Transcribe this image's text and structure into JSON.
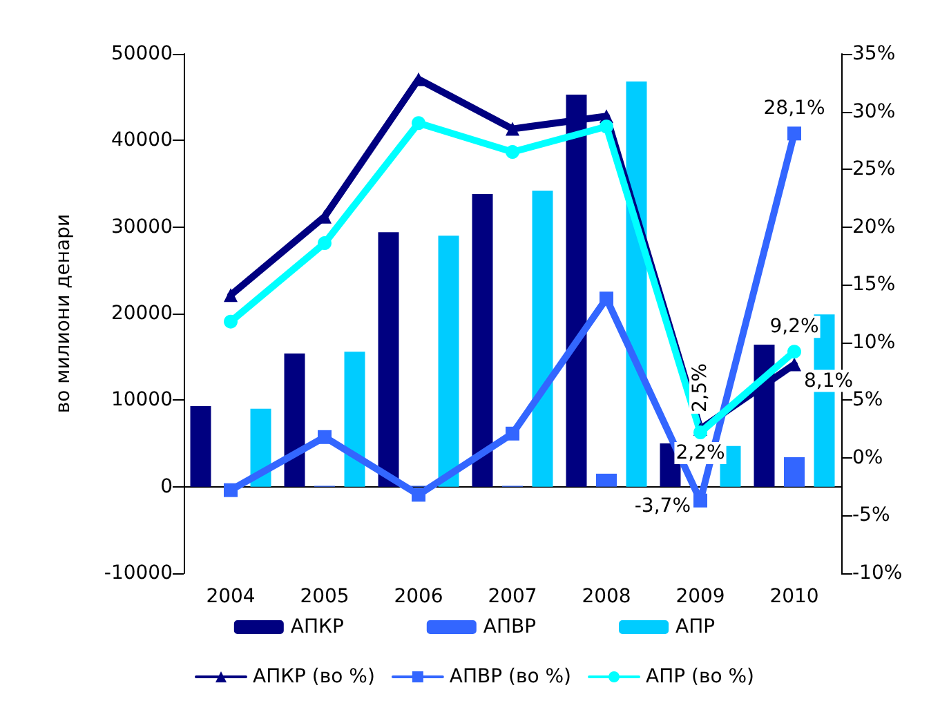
{
  "chart_data": {
    "type": "bar",
    "ylabel": "во милиони денари",
    "categories": [
      "2004",
      "2005",
      "2006",
      "2007",
      "2008",
      "2009",
      "2010"
    ],
    "series": [
      {
        "name": "АПКР",
        "color": "#000080",
        "values": [
          9300,
          15400,
          29400,
          33800,
          45300,
          5000,
          16400
        ]
      },
      {
        "name": "АПВР",
        "color": "#3366ff",
        "values": [
          null,
          100,
          100,
          100,
          1500,
          null,
          3400
        ]
      },
      {
        "name": "АПР",
        "color": "#00ccff",
        "values": [
          9000,
          15600,
          29000,
          34200,
          46800,
          4700,
          19900
        ]
      },
      {
        "name": "АПКР (во %)",
        "type": "line",
        "axis": "y2",
        "marker": "triangle",
        "color": "#000080",
        "values": [
          14.1,
          20.9,
          32.8,
          28.5,
          29.6,
          2.5,
          8.1
        ],
        "value_labels": [
          null,
          null,
          null,
          null,
          null,
          "2,5%",
          "8,1%"
        ]
      },
      {
        "name": "АПВР (во %)",
        "type": "line",
        "axis": "y2",
        "marker": "square",
        "color": "#3366ff",
        "values": [
          -2.8,
          1.8,
          -3.2,
          2.1,
          13.8,
          -3.7,
          28.1
        ],
        "value_labels": [
          null,
          null,
          null,
          null,
          null,
          "-3,7%",
          "28,1%"
        ]
      },
      {
        "name": "АПР (во %)",
        "type": "line",
        "axis": "y2",
        "marker": "circle",
        "color": "#00ffff",
        "values": [
          11.8,
          18.6,
          29.0,
          26.5,
          28.7,
          2.2,
          9.2
        ],
        "value_labels": [
          null,
          null,
          null,
          null,
          null,
          "2,2%",
          "9,2%"
        ]
      }
    ],
    "ylim": [
      -10000,
      50000
    ],
    "yticks": [
      -10000,
      0,
      10000,
      20000,
      30000,
      40000,
      50000
    ],
    "y2lim": [
      -10,
      35
    ],
    "y2ticks": [
      {
        "value": -10,
        "label": "-10%"
      },
      {
        "value": -5,
        "label": "-5%"
      },
      {
        "value": 0,
        "label": "0%"
      },
      {
        "value": 5,
        "label": "5%"
      },
      {
        "value": 10,
        "label": "10%"
      },
      {
        "value": 15,
        "label": "15%"
      },
      {
        "value": 20,
        "label": "20%"
      },
      {
        "value": 25,
        "label": "25%"
      },
      {
        "value": 30,
        "label": "30%"
      },
      {
        "value": 35,
        "label": "35%"
      }
    ],
    "legend": "bottom"
  }
}
